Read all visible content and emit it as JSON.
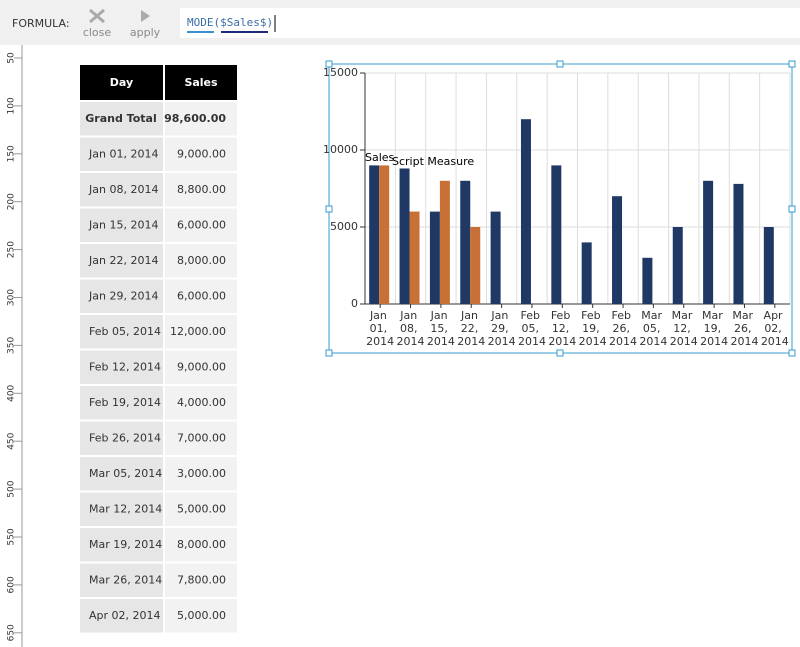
{
  "toolbar": {
    "label": "FORMULA:",
    "close": "close",
    "apply": "apply",
    "formula": "MODE($Sales$)"
  },
  "ruler": {
    "ticks": [
      50,
      100,
      150,
      200,
      250,
      300,
      350,
      400,
      450,
      500,
      550,
      600,
      650
    ]
  },
  "table": {
    "header": [
      "Day",
      "Sales"
    ],
    "rows": [
      [
        "Grand Total",
        "98,600.00"
      ],
      [
        "Jan 01, 2014",
        "9,000.00"
      ],
      [
        "Jan 08, 2014",
        "8,800.00"
      ],
      [
        "Jan 15, 2014",
        "6,000.00"
      ],
      [
        "Jan 22, 2014",
        "8,000.00"
      ],
      [
        "Jan 29, 2014",
        "6,000.00"
      ],
      [
        "Feb 05, 2014",
        "12,000.00"
      ],
      [
        "Feb 12, 2014",
        "9,000.00"
      ],
      [
        "Feb 19, 2014",
        "4,000.00"
      ],
      [
        "Feb 26, 2014",
        "7,000.00"
      ],
      [
        "Mar 05, 2014",
        "3,000.00"
      ],
      [
        "Mar 12, 2014",
        "5,000.00"
      ],
      [
        "Mar 19, 2014",
        "8,000.00"
      ],
      [
        "Mar 26, 2014",
        "7,800.00"
      ],
      [
        "Apr 02, 2014",
        "5,000.00"
      ]
    ]
  },
  "chart_data": {
    "type": "bar",
    "categories": [
      "Jan 01, 2014",
      "Jan 08, 2014",
      "Jan 15, 2014",
      "Jan 22, 2014",
      "Jan 29, 2014",
      "Feb 05, 2014",
      "Feb 12, 2014",
      "Feb 19, 2014",
      "Feb 26, 2014",
      "Mar 05, 2014",
      "Mar 12, 2014",
      "Mar 19, 2014",
      "Mar 26, 2014",
      "Apr 02, 2014"
    ],
    "series": [
      {
        "name": "Sales",
        "color": "#1f3864",
        "values": [
          9000,
          8800,
          6000,
          8000,
          6000,
          12000,
          9000,
          4000,
          7000,
          3000,
          5000,
          8000,
          7800,
          5000
        ]
      },
      {
        "name": "Script Measure",
        "color": "#c87137",
        "values": [
          9000,
          6000,
          8000,
          5000,
          null,
          null,
          null,
          null,
          null,
          null,
          null,
          null,
          null,
          null
        ]
      }
    ],
    "ylim": [
      0,
      15000
    ],
    "yticks": [
      0,
      5000,
      10000,
      15000
    ],
    "grid": true
  }
}
